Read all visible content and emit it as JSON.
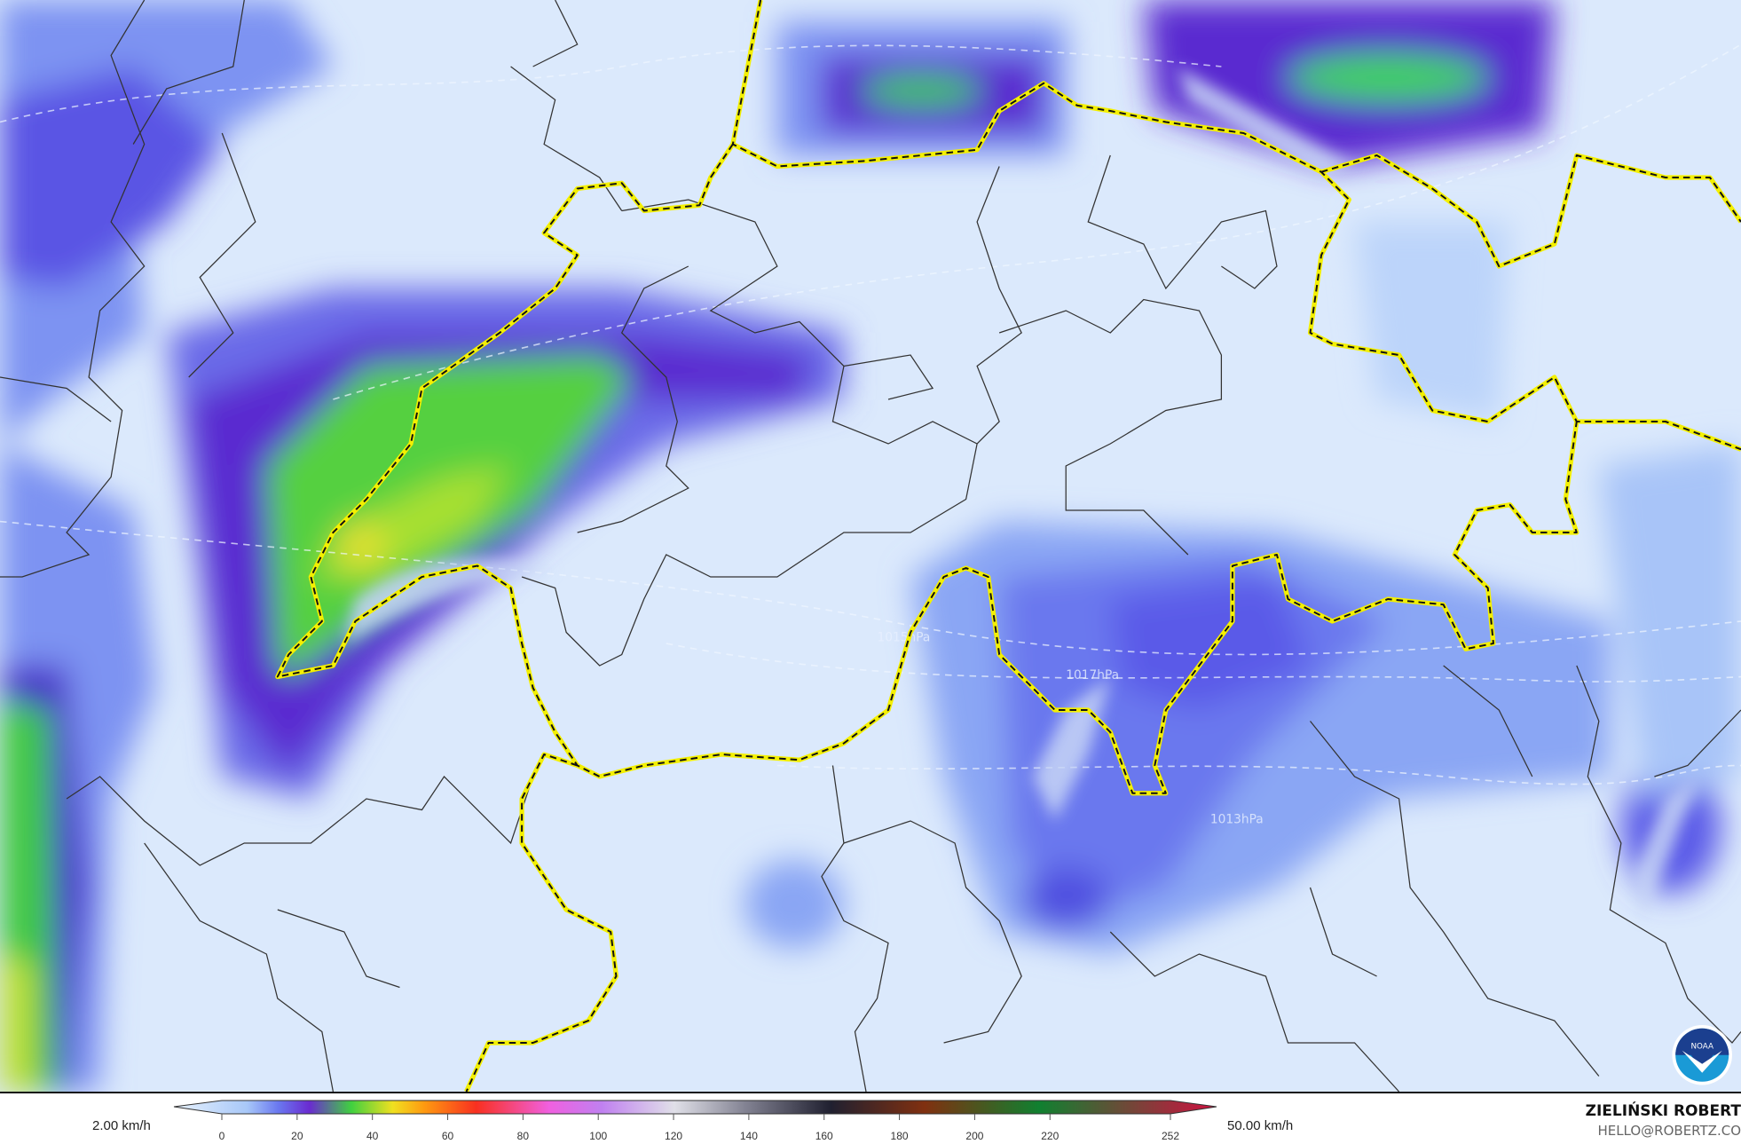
{
  "map": {
    "background_color": "#dbe9fc",
    "isobar_labels": [
      "1017hPa",
      "1015hPa",
      "1013hPa"
    ],
    "logo": "NOAA"
  },
  "legend": {
    "min_label": "2.00 km/h",
    "max_label": "50.00 km/h",
    "ticks": [
      "0",
      "20",
      "40",
      "60",
      "80",
      "100",
      "120",
      "140",
      "160",
      "180",
      "200",
      "220",
      "252"
    ],
    "colors": [
      "#e8f2fd",
      "#a8c8f8",
      "#6a78f0",
      "#6a2bd0",
      "#40d040",
      "#f0e020",
      "#ff9a10",
      "#f83020",
      "#f060e0",
      "#c080f0",
      "#e0e0e8",
      "#808090",
      "#202030",
      "#803010",
      "#108030",
      "#d01040"
    ]
  },
  "credits": {
    "name": "ZIELIŃSKI ROBERT",
    "email": "HELLO@ROBERTZ.CO"
  }
}
